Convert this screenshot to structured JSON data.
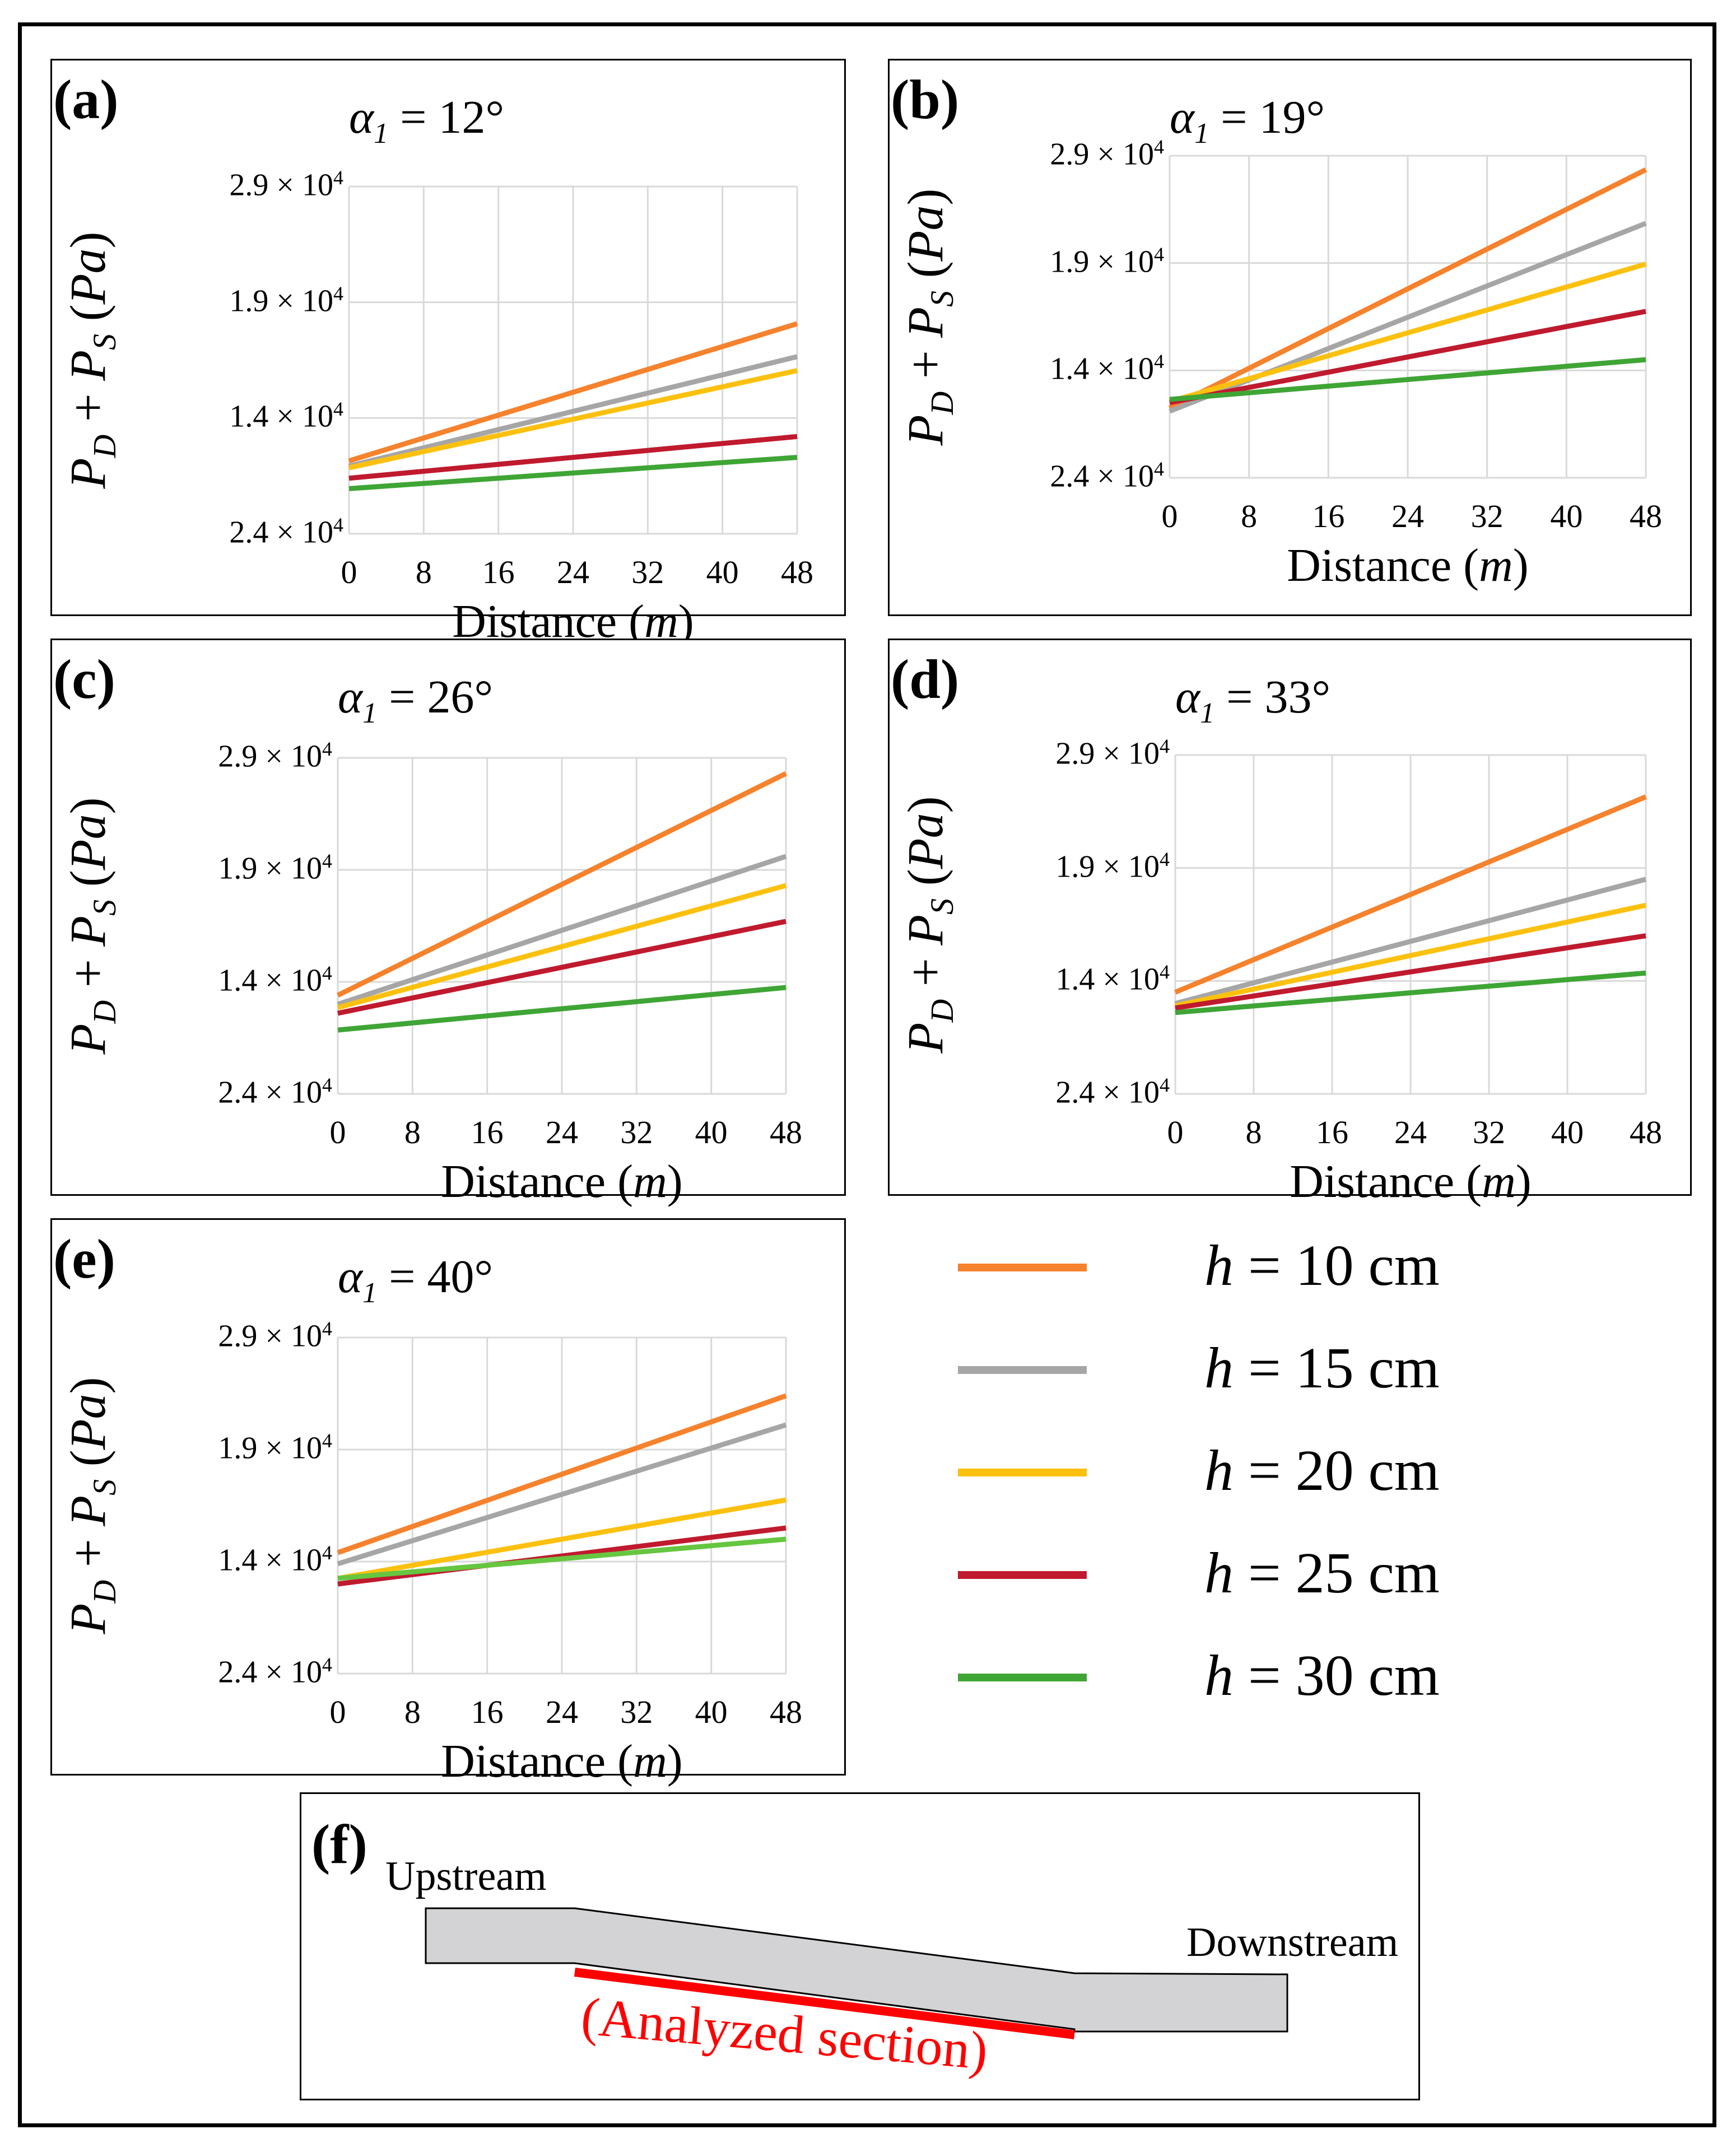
{
  "chart_data": [
    {
      "type": "line",
      "panel": "(a)",
      "title_symbol": "α",
      "title_sub": "1",
      "title_value": "= 12°",
      "ylabel": "P_D + P_S (Pa)",
      "xlabel": "Distance",
      "xlabel_unit": "m",
      "x": [
        0,
        48
      ],
      "xticks": [
        "0",
        "8",
        "16",
        "24",
        "32",
        "40",
        "48"
      ],
      "ytick_labels": [
        "2.9 × 10",
        "1.9 × 10",
        "1.4 × 10",
        "2.4 × 10"
      ],
      "ytick_exp": "4",
      "ylim": [
        0,
        4
      ],
      "series": [
        {
          "name": "h = 10 cm",
          "values": [
            0.84,
            2.42
          ]
        },
        {
          "name": "h = 15 cm",
          "values": [
            0.78,
            2.04
          ]
        },
        {
          "name": "h = 20 cm",
          "values": [
            0.76,
            1.88
          ]
        },
        {
          "name": "h = 25 cm",
          "values": [
            0.64,
            1.12
          ]
        },
        {
          "name": "h = 30 cm",
          "values": [
            0.52,
            0.88
          ]
        }
      ]
    },
    {
      "type": "line",
      "panel": "(b)",
      "title_symbol": "α",
      "title_sub": "1",
      "title_value": "= 19°",
      "ylabel": "P_D + P_S (Pa)",
      "xlabel": "Distance",
      "xlabel_unit": "m",
      "x": [
        0,
        48
      ],
      "xticks": [
        "0",
        "8",
        "16",
        "24",
        "32",
        "40",
        "48"
      ],
      "ytick_labels": [
        "2.9 × 10",
        "1.9 × 10",
        "1.4 × 10",
        "2.4 × 10"
      ],
      "ytick_exp": "4",
      "ylim": [
        0,
        3
      ],
      "series": [
        {
          "name": "h = 10 cm",
          "values": [
            0.65,
            2.87
          ]
        },
        {
          "name": "h = 15 cm",
          "values": [
            0.62,
            2.37
          ]
        },
        {
          "name": "h = 20 cm",
          "values": [
            0.71,
            1.99
          ]
        },
        {
          "name": "h = 25 cm",
          "values": [
            0.7,
            1.55
          ]
        },
        {
          "name": "h = 30 cm",
          "values": [
            0.73,
            1.1
          ]
        }
      ]
    },
    {
      "type": "line",
      "panel": "(c)",
      "title_symbol": "α",
      "title_sub": "1",
      "title_value": "= 26°",
      "ylabel": "P_D + P_S (Pa)",
      "xlabel": "Distance",
      "xlabel_unit": "m",
      "x": [
        0,
        48
      ],
      "xticks": [
        "0",
        "8",
        "16",
        "24",
        "32",
        "40",
        "48"
      ],
      "ytick_labels": [
        "2.9 × 10",
        "1.9 × 10",
        "1.4 × 10",
        "2.4 × 10"
      ],
      "ytick_exp": "4",
      "ylim": [
        0,
        3
      ],
      "series": [
        {
          "name": "h = 10 cm",
          "values": [
            0.88,
            2.86
          ]
        },
        {
          "name": "h = 15 cm",
          "values": [
            0.8,
            2.12
          ]
        },
        {
          "name": "h = 20 cm",
          "values": [
            0.77,
            1.86
          ]
        },
        {
          "name": "h = 25 cm",
          "values": [
            0.72,
            1.54
          ]
        },
        {
          "name": "h = 30 cm",
          "values": [
            0.57,
            0.95
          ]
        }
      ]
    },
    {
      "type": "line",
      "panel": "(d)",
      "title_symbol": "α",
      "title_sub": "1",
      "title_value": "= 33°",
      "ylabel": "P_D + P_S (Pa)",
      "xlabel": "Distance",
      "xlabel_unit": "m",
      "x": [
        0,
        48
      ],
      "xticks": [
        "0",
        "8",
        "16",
        "24",
        "32",
        "40",
        "48"
      ],
      "ytick_labels": [
        "2.9 × 10",
        "1.9 × 10",
        "1.4 × 10",
        "2.4 × 10"
      ],
      "ytick_exp": "4",
      "ylim": [
        0,
        3
      ],
      "series": [
        {
          "name": "h = 10 cm",
          "values": [
            0.9,
            2.63
          ]
        },
        {
          "name": "h = 15 cm",
          "values": [
            0.8,
            1.9
          ]
        },
        {
          "name": "h = 20 cm",
          "values": [
            0.78,
            1.67
          ]
        },
        {
          "name": "h = 25 cm",
          "values": [
            0.76,
            1.4
          ]
        },
        {
          "name": "h = 30 cm",
          "values": [
            0.72,
            1.07
          ]
        }
      ]
    },
    {
      "type": "line",
      "panel": "(e)",
      "title_symbol": "α",
      "title_sub": "1",
      "title_value": "= 40°",
      "ylabel": "P_D + P_S (Pa)",
      "xlabel": "Distance",
      "xlabel_unit": "m",
      "x": [
        0,
        48
      ],
      "xticks": [
        "0",
        "8",
        "16",
        "24",
        "32",
        "40",
        "48"
      ],
      "ytick_labels": [
        "2.9 × 10",
        "1.9 × 10",
        "1.4 × 10",
        "2.4 × 10"
      ],
      "ytick_exp": "4",
      "ylim": [
        0,
        3
      ],
      "series": [
        {
          "name": "h = 10 cm",
          "values": [
            1.08,
            2.48
          ]
        },
        {
          "name": "h = 15 cm",
          "values": [
            0.98,
            2.22
          ]
        },
        {
          "name": "h = 20 cm",
          "values": [
            0.85,
            1.55
          ]
        },
        {
          "name": "h = 25 cm",
          "values": [
            0.8,
            1.3
          ]
        },
        {
          "name": "h = 30 cm",
          "values": [
            0.85,
            1.2
          ]
        }
      ]
    }
  ],
  "colors": {
    "h10": "#f5822d",
    "h15": "#a6a6a6",
    "h20": "#fcc10f",
    "h25": "#c01a2e",
    "h30": "#3fa535",
    "h30_e": "#66c640",
    "grid": "#d9d9d9",
    "channel_fill": "#d3d2d4",
    "analyzed": "#ff0000"
  },
  "legend": [
    {
      "var": "h",
      "text": "= 10 cm",
      "color_key": "h10"
    },
    {
      "var": "h",
      "text": "= 15 cm",
      "color_key": "h15"
    },
    {
      "var": "h",
      "text": "= 20 cm",
      "color_key": "h20"
    },
    {
      "var": "h",
      "text": "= 25 cm",
      "color_key": "h25"
    },
    {
      "var": "h",
      "text": "= 30 cm",
      "color_key": "h30"
    }
  ],
  "panel_f": {
    "label": "(f)",
    "upstream": "Upstream",
    "downstream": "Downstream",
    "analyzed": "(Analyzed section)"
  }
}
